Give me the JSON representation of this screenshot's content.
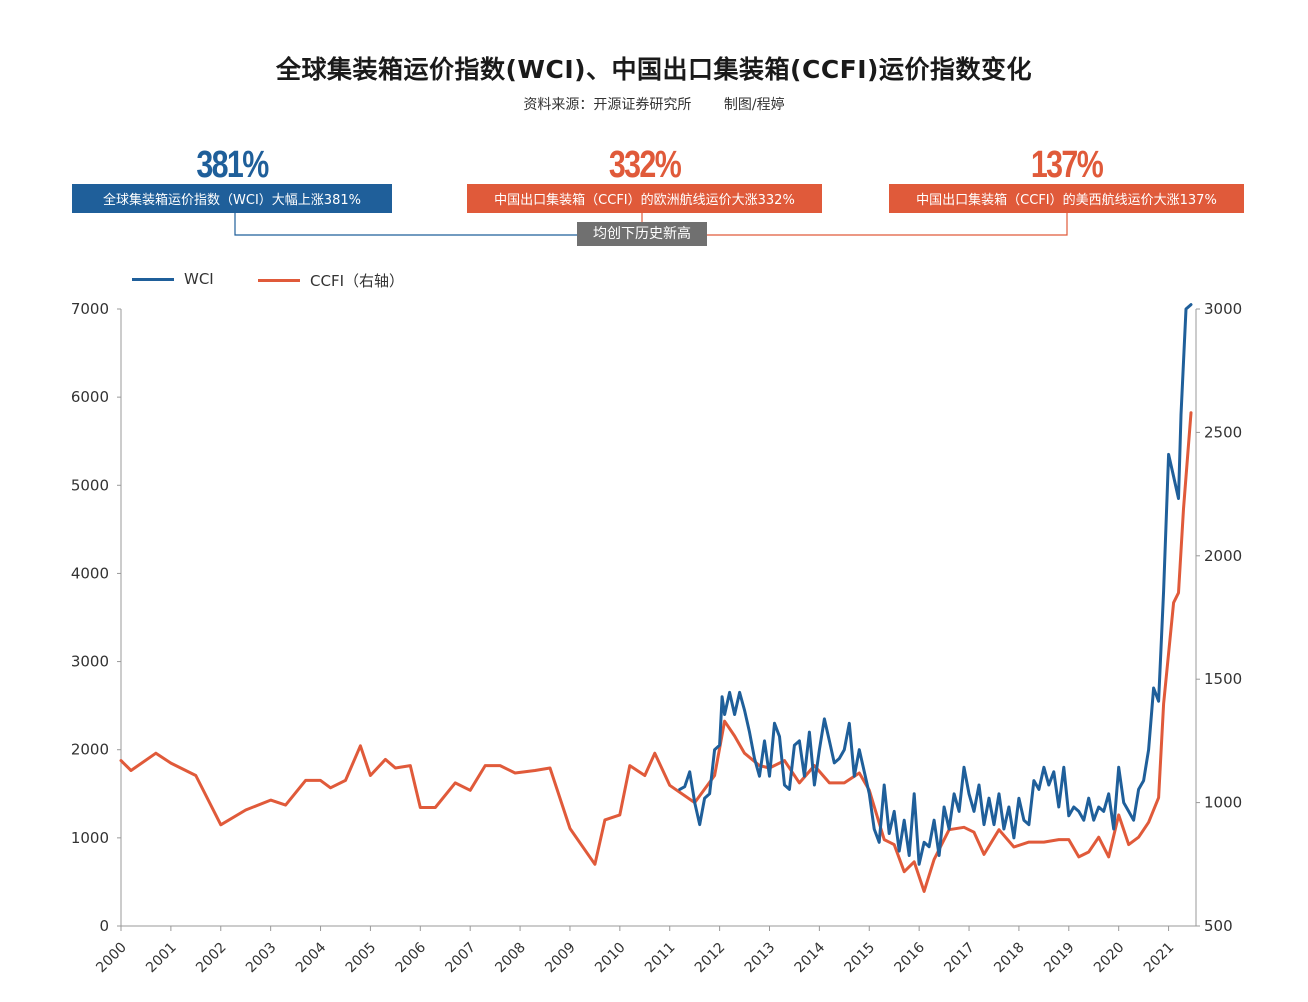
{
  "header": {
    "title": "全球集装箱运价指数(WCI)、中国出口集装箱(CCFI)运价指数变化",
    "source": "资料来源：开源证券研究所",
    "maker": "制图/程婷"
  },
  "stats": [
    {
      "pct": "381%",
      "label": "全球集装箱运价指数（WCI）大幅上涨381%",
      "color": "#1f5f9a"
    },
    {
      "pct": "332%",
      "label": "中国出口集装箱（CCFI）的欧洲航线运价大涨332%",
      "color": "#e05a3a"
    },
    {
      "pct": "137%",
      "label": "中国出口集装箱（CCFI）的美西航线运价大涨137%",
      "color": "#e05a3a"
    }
  ],
  "note": "均创下历史新高",
  "chart_data": {
    "type": "line",
    "series": [
      {
        "name": "WCI",
        "color": "#1f5f9a",
        "axis": "left",
        "x": [
          2011.2,
          2011.3,
          2011.4,
          2011.5,
          2011.6,
          2011.7,
          2011.8,
          2011.9,
          2012.0,
          2012.05,
          2012.1,
          2012.2,
          2012.3,
          2012.4,
          2012.5,
          2012.6,
          2012.7,
          2012.8,
          2012.9,
          2013.0,
          2013.1,
          2013.2,
          2013.3,
          2013.4,
          2013.5,
          2013.6,
          2013.7,
          2013.8,
          2013.9,
          2014.0,
          2014.1,
          2014.2,
          2014.3,
          2014.4,
          2014.5,
          2014.6,
          2014.7,
          2014.8,
          2014.9,
          2015.0,
          2015.1,
          2015.2,
          2015.3,
          2015.4,
          2015.5,
          2015.6,
          2015.7,
          2015.8,
          2015.9,
          2016.0,
          2016.1,
          2016.2,
          2016.3,
          2016.4,
          2016.5,
          2016.6,
          2016.7,
          2016.8,
          2016.9,
          2017.0,
          2017.1,
          2017.2,
          2017.3,
          2017.4,
          2017.5,
          2017.6,
          2017.7,
          2017.8,
          2017.9,
          2018.0,
          2018.1,
          2018.2,
          2018.3,
          2018.4,
          2018.5,
          2018.6,
          2018.7,
          2018.8,
          2018.9,
          2019.0,
          2019.1,
          2019.2,
          2019.3,
          2019.4,
          2019.5,
          2019.6,
          2019.7,
          2019.8,
          2019.9,
          2020.0,
          2020.1,
          2020.2,
          2020.3,
          2020.4,
          2020.5,
          2020.6,
          2020.7,
          2020.8,
          2020.9,
          2021.0,
          2021.1,
          2021.2,
          2021.25,
          2021.35,
          2021.45
        ],
        "values": [
          1550,
          1580,
          1750,
          1400,
          1150,
          1450,
          1500,
          2000,
          2050,
          2600,
          2400,
          2650,
          2400,
          2650,
          2450,
          2200,
          1900,
          1700,
          2100,
          1700,
          2300,
          2150,
          1600,
          1550,
          2050,
          2100,
          1700,
          2200,
          1600,
          2000,
          2350,
          2100,
          1850,
          1900,
          2000,
          2300,
          1700,
          2000,
          1750,
          1500,
          1100,
          950,
          1600,
          1050,
          1300,
          850,
          1200,
          800,
          1500,
          700,
          950,
          900,
          1200,
          800,
          1350,
          1100,
          1500,
          1300,
          1800,
          1500,
          1300,
          1600,
          1150,
          1450,
          1150,
          1500,
          1100,
          1350,
          1000,
          1450,
          1200,
          1150,
          1650,
          1550,
          1800,
          1600,
          1750,
          1350,
          1800,
          1250,
          1350,
          1300,
          1200,
          1450,
          1200,
          1350,
          1300,
          1500,
          1100,
          1800,
          1400,
          1300,
          1200,
          1550,
          1650,
          2000,
          2700,
          2550,
          3800,
          5350,
          5100,
          4850,
          5800,
          7000,
          7050
        ]
      },
      {
        "name": "CCFI（右轴）",
        "color": "#e05a3a",
        "axis": "right",
        "x": [
          2000.0,
          2000.2,
          2000.7,
          2001.0,
          2001.5,
          2002.0,
          2002.5,
          2003.0,
          2003.3,
          2003.7,
          2004.0,
          2004.2,
          2004.5,
          2004.8,
          2005.0,
          2005.3,
          2005.5,
          2005.8,
          2006.0,
          2006.3,
          2006.7,
          2007.0,
          2007.3,
          2007.6,
          2007.9,
          2008.3,
          2008.6,
          2009.0,
          2009.5,
          2009.7,
          2010.0,
          2010.2,
          2010.5,
          2010.7,
          2011.0,
          2011.5,
          2011.9,
          2012.1,
          2012.3,
          2012.5,
          2012.8,
          2013.0,
          2013.3,
          2013.6,
          2013.9,
          2014.2,
          2014.5,
          2014.8,
          2015.0,
          2015.3,
          2015.5,
          2015.7,
          2015.9,
          2016.1,
          2016.3,
          2016.6,
          2016.9,
          2017.1,
          2017.3,
          2017.6,
          2017.9,
          2018.2,
          2018.5,
          2018.8,
          2019.0,
          2019.2,
          2019.4,
          2019.6,
          2019.8,
          2020.0,
          2020.2,
          2020.4,
          2020.6,
          2020.8,
          2020.9,
          2021.1,
          2021.2,
          2021.3,
          2021.45
        ],
        "values": [
          1170,
          1130,
          1200,
          1160,
          1110,
          910,
          970,
          1010,
          990,
          1090,
          1090,
          1060,
          1090,
          1230,
          1110,
          1175,
          1140,
          1150,
          980,
          980,
          1080,
          1050,
          1150,
          1150,
          1120,
          1130,
          1140,
          895,
          750,
          930,
          950,
          1150,
          1110,
          1200,
          1070,
          1000,
          1110,
          1330,
          1270,
          1200,
          1150,
          1140,
          1170,
          1080,
          1150,
          1080,
          1080,
          1120,
          1050,
          850,
          830,
          720,
          760,
          640,
          770,
          890,
          900,
          880,
          790,
          890,
          820,
          840,
          840,
          850,
          850,
          780,
          800,
          860,
          780,
          950,
          830,
          860,
          920,
          1020,
          1400,
          1810,
          1850,
          2190,
          2580
        ]
      }
    ],
    "x_ticks": [
      "2000",
      "2001",
      "2002",
      "2003",
      "2004",
      "2005",
      "2006",
      "2007",
      "2008",
      "2009",
      "2010",
      "2011",
      "2012",
      "2013",
      "2014",
      "2015",
      "2016",
      "2017",
      "2018",
      "2019",
      "2020",
      "2021"
    ],
    "y_left": {
      "min": 0,
      "max": 7000,
      "ticks": [
        "0",
        "1000",
        "2000",
        "3000",
        "4000",
        "5000",
        "6000",
        "7000"
      ]
    },
    "y_right": {
      "min": 500,
      "max": 3000,
      "ticks": [
        "500",
        "1000",
        "1500",
        "2000",
        "2500",
        "3000"
      ]
    },
    "legend": [
      "WCI",
      "CCFI（右轴）"
    ]
  }
}
